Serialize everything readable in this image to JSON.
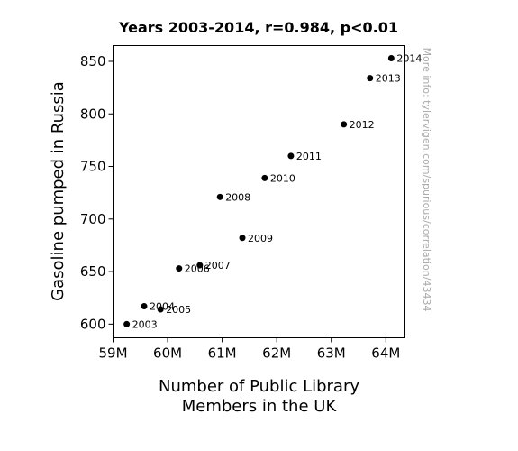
{
  "chart_data": {
    "type": "scatter",
    "title": "Years 2003-2014, r=0.984, p<0.01",
    "xlabel_lines": [
      "Number of Public Library",
      "Members in the UK"
    ],
    "ylabel": "Gasoline pumped in Russia",
    "watermark": "More info: tylervigen.com/spurious/correlation/43434",
    "xlim": [
      59.0,
      64.35
    ],
    "ylim": [
      587,
      865
    ],
    "xticks": [
      {
        "value": 59,
        "label": "59M"
      },
      {
        "value": 60,
        "label": "60M"
      },
      {
        "value": 61,
        "label": "61M"
      },
      {
        "value": 62,
        "label": "62M"
      },
      {
        "value": 63,
        "label": "63M"
      },
      {
        "value": 64,
        "label": "64M"
      }
    ],
    "yticks": [
      {
        "value": 600,
        "label": "600"
      },
      {
        "value": 650,
        "label": "650"
      },
      {
        "value": 700,
        "label": "700"
      },
      {
        "value": 750,
        "label": "750"
      },
      {
        "value": 800,
        "label": "800"
      },
      {
        "value": 850,
        "label": "850"
      }
    ],
    "points": [
      {
        "label": "2003",
        "x": 59.25,
        "y": 600
      },
      {
        "label": "2004",
        "x": 59.57,
        "y": 617
      },
      {
        "label": "2005",
        "x": 59.87,
        "y": 614
      },
      {
        "label": "2006",
        "x": 60.21,
        "y": 653
      },
      {
        "label": "2007",
        "x": 60.59,
        "y": 656
      },
      {
        "label": "2008",
        "x": 60.96,
        "y": 721
      },
      {
        "label": "2009",
        "x": 61.37,
        "y": 682
      },
      {
        "label": "2010",
        "x": 61.78,
        "y": 739
      },
      {
        "label": "2011",
        "x": 62.26,
        "y": 760
      },
      {
        "label": "2012",
        "x": 63.23,
        "y": 790
      },
      {
        "label": "2013",
        "x": 63.71,
        "y": 834
      },
      {
        "label": "2014",
        "x": 64.1,
        "y": 853
      }
    ]
  }
}
